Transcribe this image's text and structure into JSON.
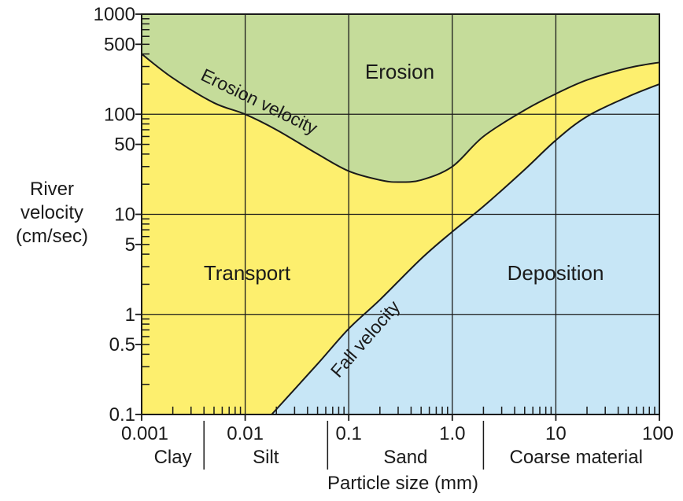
{
  "chart_data": {
    "type": "area",
    "title": "",
    "xlabel": "Particle size (mm)",
    "ylabel": [
      "River",
      "velocity",
      "(cm/sec)"
    ],
    "x_scale": "log",
    "y_scale": "log",
    "xlim": [
      0.001,
      100
    ],
    "ylim": [
      0.1,
      1000
    ],
    "x_ticks": [
      {
        "value": 0.001,
        "label": "0.001"
      },
      {
        "value": 0.01,
        "label": "0.01"
      },
      {
        "value": 0.1,
        "label": "0.1"
      },
      {
        "value": 1,
        "label": "1.0"
      },
      {
        "value": 10,
        "label": "10"
      },
      {
        "value": 100,
        "label": "100"
      }
    ],
    "y_ticks": [
      {
        "value": 1000,
        "label": "1000"
      },
      {
        "value": 500,
        "label": "500"
      },
      {
        "value": 100,
        "label": "100"
      },
      {
        "value": 50,
        "label": "50"
      },
      {
        "value": 10,
        "label": "10"
      },
      {
        "value": 5,
        "label": "5"
      },
      {
        "value": 1,
        "label": "1"
      },
      {
        "value": 0.5,
        "label": "0.5"
      },
      {
        "value": 0.1,
        "label": "0.1"
      }
    ],
    "grid": true,
    "series": [
      {
        "name": "Erosion velocity",
        "x": [
          0.001,
          0.002,
          0.005,
          0.01,
          0.02,
          0.05,
          0.1,
          0.2,
          0.3,
          0.5,
          1,
          2,
          5,
          10,
          20,
          50,
          100
        ],
        "y": [
          400,
          230,
          130,
          100,
          70,
          40,
          27,
          22,
          21,
          22,
          30,
          60,
          110,
          160,
          220,
          290,
          330
        ]
      },
      {
        "name": "Fall velocity",
        "x": [
          0.018,
          0.05,
          0.1,
          0.2,
          0.5,
          1,
          2,
          5,
          10,
          20,
          50,
          100
        ],
        "y": [
          0.1,
          0.32,
          0.72,
          1.4,
          3.6,
          6.7,
          12,
          28,
          55,
          95,
          150,
          200
        ]
      }
    ],
    "regions": [
      {
        "label": "Erosion",
        "color": "#c5dc9a"
      },
      {
        "label": "Transport",
        "color": "#fdef6e"
      },
      {
        "label": "Deposition",
        "color": "#c7e6f6"
      }
    ],
    "size_classes": [
      {
        "label": "Clay",
        "from": 0.001,
        "to": 0.004
      },
      {
        "label": "Silt",
        "from": 0.004,
        "to": 0.0625
      },
      {
        "label": "Sand",
        "from": 0.0625,
        "to": 2
      },
      {
        "label": "Coarse material",
        "from": 2,
        "to": 100
      }
    ]
  }
}
